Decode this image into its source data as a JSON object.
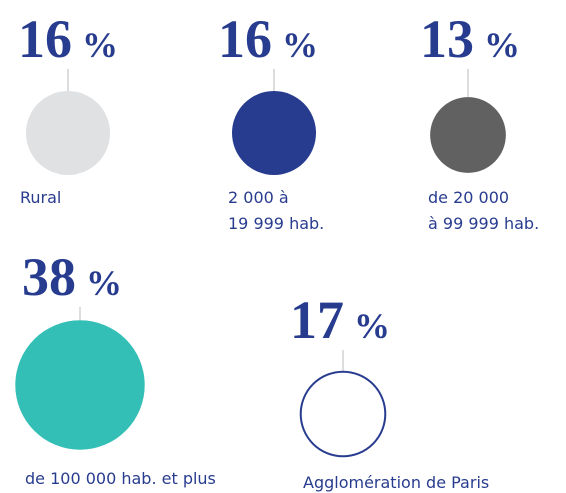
{
  "chart_data": {
    "type": "bubble",
    "categories": [
      "Rural",
      "2 000 à\n19 999 hab.",
      "de 20 000\nà 99 999 hab.",
      "de 100 000 hab. et plus",
      "Agglomération de Paris"
    ],
    "values": [
      16,
      16,
      13,
      38,
      17
    ],
    "unit": "%",
    "colors": [
      "#e0e1e3",
      "#283c8f",
      "#616161",
      "#34bfb6",
      "#ffffff"
    ],
    "outline": [
      false,
      false,
      false,
      false,
      true
    ],
    "outline_color": "#283c8f",
    "number_color": "#283c8f"
  }
}
